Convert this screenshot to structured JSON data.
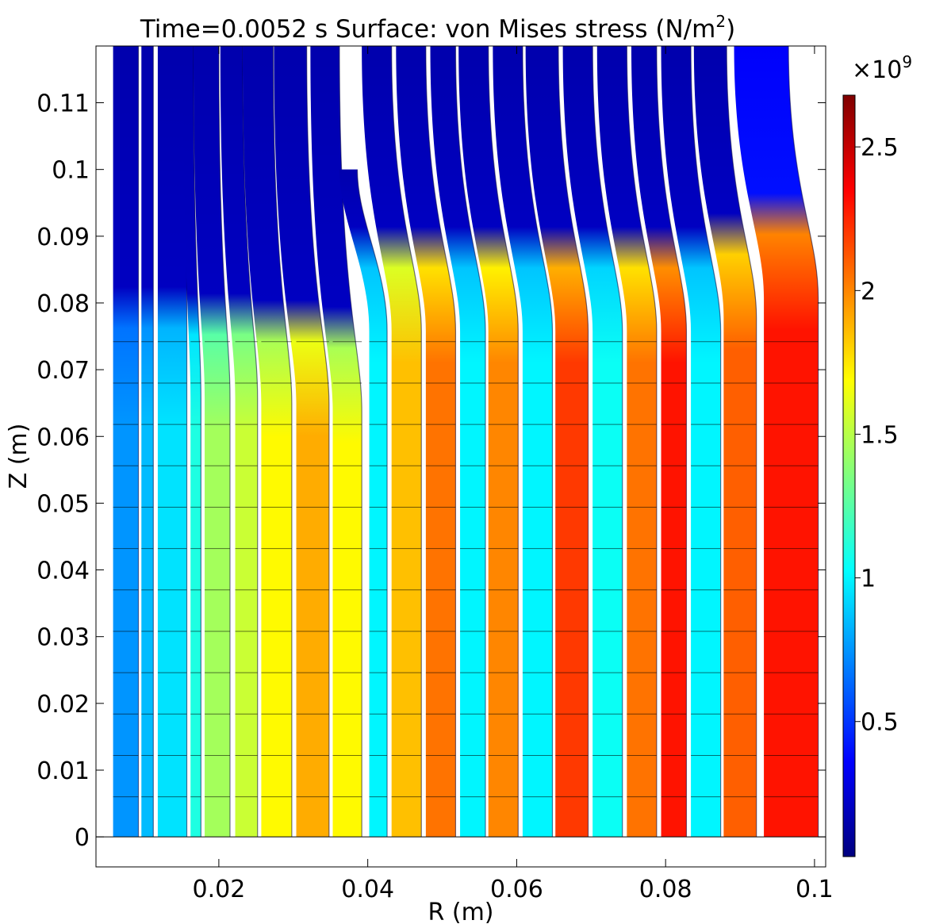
{
  "chart_data": {
    "type": "heatmap",
    "title": {
      "prefix": "Time=0.0052 s   Surface: von Mises stress (N/m",
      "superscript": "2",
      "suffix": ")"
    },
    "xlabel": "R (m)",
    "ylabel": "Z (m)",
    "xlim": [
      0.0035,
      0.1015
    ],
    "ylim": [
      -0.0045,
      0.1185
    ],
    "x_ticks": [
      {
        "value": 0.02,
        "label": "0.02"
      },
      {
        "value": 0.04,
        "label": "0.04"
      },
      {
        "value": 0.06,
        "label": "0.06"
      },
      {
        "value": 0.08,
        "label": "0.08"
      },
      {
        "value": 0.1,
        "label": "0.1"
      }
    ],
    "y_ticks": [
      {
        "value": 0,
        "label": "0"
      },
      {
        "value": 0.01,
        "label": "0.01"
      },
      {
        "value": 0.02,
        "label": "0.02"
      },
      {
        "value": 0.03,
        "label": "0.03"
      },
      {
        "value": 0.04,
        "label": "0.04"
      },
      {
        "value": 0.05,
        "label": "0.05"
      },
      {
        "value": 0.06,
        "label": "0.06"
      },
      {
        "value": 0.07,
        "label": "0.07"
      },
      {
        "value": 0.08,
        "label": "0.08"
      },
      {
        "value": 0.09,
        "label": "0.09"
      },
      {
        "value": 0.1,
        "label": "0.1"
      },
      {
        "value": 0.11,
        "label": "0.11"
      }
    ],
    "colorbar": {
      "multiplier": {
        "base": "×10",
        "exponent": "9"
      },
      "range": [
        0.03,
        2.68
      ],
      "ticks": [
        {
          "value": 0.5,
          "label": "0.5"
        },
        {
          "value": 1,
          "label": "1"
        },
        {
          "value": 1.5,
          "label": "1.5"
        },
        {
          "value": 2,
          "label": "2"
        },
        {
          "value": 2.5,
          "label": "2.5"
        }
      ],
      "colormap": [
        "#00007f",
        "#0000ff",
        "#007fff",
        "#00ffff",
        "#7fff7f",
        "#ffff00",
        "#ff7f00",
        "#ff0000",
        "#7f0000"
      ]
    },
    "layers": [
      {
        "r0": 0.0058,
        "r1": 0.0092,
        "stress_low": 0.75,
        "stress_top": 0.15,
        "z_top": 0.1185,
        "transition_z": 0.081,
        "bend": 0.0
      },
      {
        "r0": 0.0096,
        "r1": 0.0112,
        "stress_low": 0.85,
        "stress_top": 0.15,
        "z_top": 0.1185,
        "transition_z": 0.081,
        "bend": 0.0
      },
      {
        "r0": 0.0118,
        "r1": 0.0157,
        "stress_low": 0.95,
        "stress_top": 0.15,
        "z_top": 0.1185,
        "transition_z": 0.081,
        "bend": 0.0
      },
      {
        "r0": 0.0162,
        "r1": 0.0176,
        "stress_low": 1.1,
        "stress_top": 0.15,
        "z_top": 0.1185,
        "transition_z": 0.08,
        "bend": 0.001
      },
      {
        "r0": 0.0181,
        "r1": 0.0215,
        "stress_low": 1.45,
        "stress_top": 0.15,
        "z_top": 0.1185,
        "transition_z": 0.08,
        "bend": 0.0015
      },
      {
        "r0": 0.0222,
        "r1": 0.0252,
        "stress_low": 1.55,
        "stress_top": 0.15,
        "z_top": 0.1185,
        "transition_z": 0.08,
        "bend": 0.002
      },
      {
        "r0": 0.0257,
        "r1": 0.0298,
        "stress_low": 1.7,
        "stress_top": 0.15,
        "z_top": 0.1185,
        "transition_z": 0.079,
        "bend": 0.0025
      },
      {
        "r0": 0.0304,
        "r1": 0.0348,
        "stress_low": 1.9,
        "stress_top": 0.15,
        "z_top": 0.1185,
        "transition_z": 0.079,
        "bend": 0.003
      },
      {
        "r0": 0.0353,
        "r1": 0.0392,
        "stress_low": 1.7,
        "stress_top": 0.15,
        "z_top": 0.1185,
        "transition_z": 0.078,
        "bend": 0.003
      },
      {
        "r0": 0.0402,
        "r1": 0.0426,
        "stress_low": 1.0,
        "stress_top": 0.15,
        "z_top": 0.1,
        "transition_z": 0.09,
        "bend": 0.004
      },
      {
        "r0": 0.0432,
        "r1": 0.0472,
        "stress_low": 1.85,
        "stress_top": 0.15,
        "z_top": 0.1185,
        "transition_z": 0.09,
        "bend": 0.004
      },
      {
        "r0": 0.0478,
        "r1": 0.0518,
        "stress_low": 2.05,
        "stress_top": 0.15,
        "z_top": 0.1185,
        "transition_z": 0.09,
        "bend": 0.004
      },
      {
        "r0": 0.0524,
        "r1": 0.0558,
        "stress_low": 1.0,
        "stress_top": 0.15,
        "z_top": 0.1185,
        "transition_z": 0.09,
        "bend": 0.004
      },
      {
        "r0": 0.0562,
        "r1": 0.0602,
        "stress_low": 2.0,
        "stress_top": 0.15,
        "z_top": 0.1185,
        "transition_z": 0.09,
        "bend": 0.004
      },
      {
        "r0": 0.0608,
        "r1": 0.0648,
        "stress_low": 1.0,
        "stress_top": 0.15,
        "z_top": 0.1185,
        "transition_z": 0.09,
        "bend": 0.004
      },
      {
        "r0": 0.0652,
        "r1": 0.0696,
        "stress_low": 2.2,
        "stress_top": 0.15,
        "z_top": 0.1185,
        "transition_z": 0.09,
        "bend": 0.004
      },
      {
        "r0": 0.0702,
        "r1": 0.0742,
        "stress_low": 1.05,
        "stress_top": 0.15,
        "z_top": 0.1185,
        "transition_z": 0.09,
        "bend": 0.004
      },
      {
        "r0": 0.0748,
        "r1": 0.0788,
        "stress_low": 2.05,
        "stress_top": 0.15,
        "z_top": 0.1185,
        "transition_z": 0.09,
        "bend": 0.004
      },
      {
        "r0": 0.0794,
        "r1": 0.0828,
        "stress_low": 2.3,
        "stress_top": 0.15,
        "z_top": 0.1185,
        "transition_z": 0.09,
        "bend": 0.004
      },
      {
        "r0": 0.0834,
        "r1": 0.0874,
        "stress_low": 1.0,
        "stress_top": 0.15,
        "z_top": 0.1185,
        "transition_z": 0.09,
        "bend": 0.004
      },
      {
        "r0": 0.0878,
        "r1": 0.0922,
        "stress_low": 2.1,
        "stress_top": 0.15,
        "z_top": 0.1185,
        "transition_z": 0.092,
        "bend": 0.004
      },
      {
        "r0": 0.0932,
        "r1": 0.1005,
        "stress_low": 2.3,
        "stress_top": 0.35,
        "z_top": 0.1185,
        "transition_z": 0.095,
        "bend": 0.004
      }
    ]
  }
}
